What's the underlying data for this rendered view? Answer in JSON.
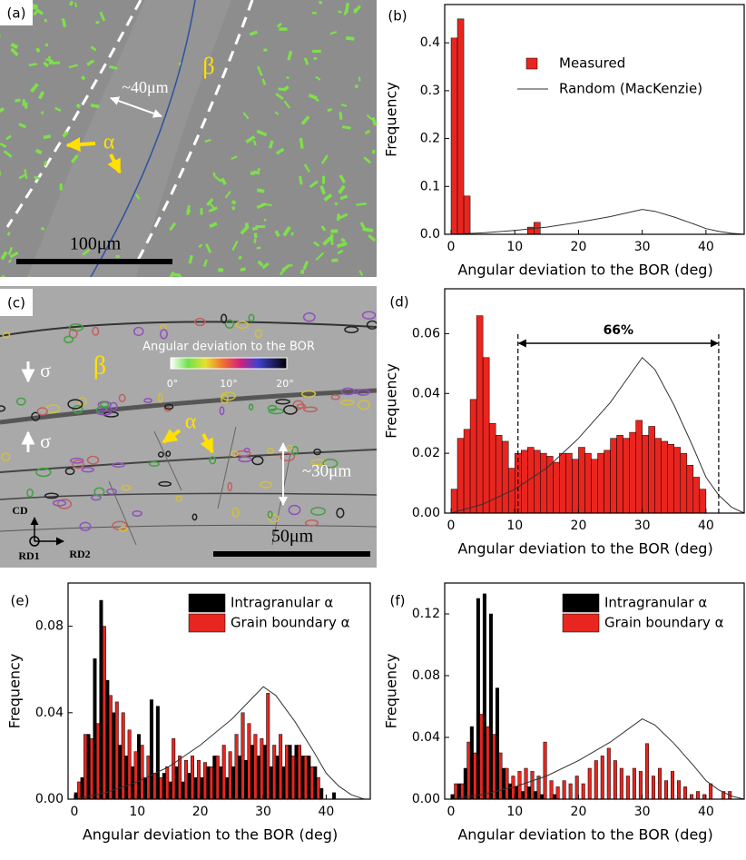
{
  "images": [
    {
      "label": "(a)",
      "width_text": "~40μm",
      "phase_beta": "β",
      "phase_alpha": "α",
      "scale_bar": "100μm"
    },
    {
      "label": "(c)",
      "colorbar_title": "Angular deviation to the BOR",
      "colorbar_ticks": [
        "0°",
        "10°",
        "20°"
      ],
      "stress_top": "σ",
      "stress_bottom": "σ",
      "phase_beta": "β",
      "phase_alpha": "α",
      "width_text": "~30μm",
      "scale_bar": "50μm",
      "axes": [
        "CD",
        "RD1",
        "RD2"
      ]
    }
  ],
  "chart_data": [
    {
      "type": "histogram",
      "label": "(b)",
      "x_label": "Angular deviation to the BOR (deg)",
      "y_label": "Frequency",
      "xlim": [
        -1,
        46
      ],
      "ylim": [
        0,
        0.48
      ],
      "xticks": [
        0,
        10,
        20,
        30,
        40
      ],
      "yticks": [
        {
          "value": 0,
          "label": "0.0"
        },
        0.1,
        0.2,
        0.3,
        0.4
      ],
      "legend": "upper right",
      "bins": [
        0,
        1,
        2,
        3,
        4,
        5,
        6,
        7,
        8,
        9,
        10,
        11,
        12,
        13,
        14
      ],
      "series": [
        {
          "name": "Measured",
          "type": "histogram",
          "color": "#e8251f",
          "values": [
            0.41,
            0.45,
            0.08,
            0,
            0,
            0,
            0,
            0,
            0,
            0,
            0,
            0,
            0.015,
            0.025
          ]
        },
        {
          "name": "Random (MacKenzie)",
          "type": "line",
          "color": "#333333",
          "x": [
            0,
            5,
            10,
            15,
            20,
            25,
            28,
            30,
            32,
            35,
            38,
            40,
            42,
            44,
            46
          ],
          "values": [
            0,
            0.003,
            0.008,
            0.015,
            0.025,
            0.037,
            0.046,
            0.052,
            0.048,
            0.036,
            0.022,
            0.012,
            0.006,
            0.002,
            0
          ]
        }
      ]
    },
    {
      "type": "histogram",
      "label": "(d)",
      "x_label": "Angular deviation to the BOR (deg)",
      "y_label": "Frequency",
      "xlim": [
        -1,
        46
      ],
      "ylim": [
        0,
        0.075
      ],
      "xticks": [
        0,
        10,
        20,
        30,
        40
      ],
      "yticks": [
        {
          "value": 0,
          "label": "0.00"
        },
        {
          "value": 0.02,
          "label": "0.02"
        },
        {
          "value": 0.04,
          "label": "0.04"
        },
        {
          "value": 0.06,
          "label": "0.06"
        }
      ],
      "annotation": {
        "text": "66%",
        "x_start": 10.5,
        "x_end": 42
      },
      "bins": [
        0,
        1,
        2,
        3,
        4,
        5,
        6,
        7,
        8,
        9,
        10,
        11,
        12,
        13,
        14,
        15,
        16,
        17,
        18,
        19,
        20,
        21,
        22,
        23,
        24,
        25,
        26,
        27,
        28,
        29,
        30,
        31,
        32,
        33,
        34,
        35,
        36,
        37,
        38,
        39,
        40
      ],
      "series": [
        {
          "type": "histogram",
          "color": "#e8251f",
          "values": [
            0.008,
            0.025,
            0.028,
            0.038,
            0.066,
            0.052,
            0.03,
            0.026,
            0.024,
            0.015,
            0.02,
            0.021,
            0.022,
            0.021,
            0.02,
            0.019,
            0.017,
            0.02,
            0.02,
            0.018,
            0.022,
            0.02,
            0.018,
            0.02,
            0.021,
            0.025,
            0.026,
            0.025,
            0.027,
            0.031,
            0.026,
            0.029,
            0.025,
            0.024,
            0.023,
            0.022,
            0.02,
            0.016,
            0.012,
            0.008
          ]
        },
        {
          "type": "line",
          "color": "#333333",
          "x": [
            0,
            5,
            10,
            15,
            20,
            25,
            28,
            30,
            32,
            35,
            38,
            40,
            42,
            44,
            46
          ],
          "values": [
            0,
            0.003,
            0.008,
            0.015,
            0.025,
            0.037,
            0.046,
            0.052,
            0.048,
            0.036,
            0.022,
            0.012,
            0.006,
            0.002,
            0
          ]
        }
      ]
    },
    {
      "type": "histogram",
      "label": "(e)",
      "x_label": "Angular deviation to the BOR (deg)",
      "y_label": "Frequency",
      "xlim": [
        -1,
        47
      ],
      "ylim": [
        0,
        0.1
      ],
      "xticks": [
        0,
        10,
        20,
        30,
        40
      ],
      "yticks": [
        {
          "value": 0,
          "label": "0.00"
        },
        {
          "value": 0.04,
          "label": "0.04"
        },
        {
          "value": 0.08,
          "label": "0.08"
        }
      ],
      "legend": "upper right",
      "bins": [
        0,
        1,
        2,
        3,
        4,
        5,
        6,
        7,
        8,
        9,
        10,
        11,
        12,
        13,
        14,
        15,
        16,
        17,
        18,
        19,
        20,
        21,
        22,
        23,
        24,
        25,
        26,
        27,
        28,
        29,
        30,
        31,
        32,
        33,
        34,
        35,
        36,
        37,
        38,
        39,
        40,
        41,
        42
      ],
      "series": [
        {
          "name": "Intragranular α",
          "type": "histogram",
          "color": "#000000",
          "values": [
            0.003,
            0.01,
            0.03,
            0.065,
            0.092,
            0.055,
            0.04,
            0.025,
            0.02,
            0.015,
            0.03,
            0.01,
            0.046,
            0.043,
            0.012,
            0.008,
            0.015,
            0.008,
            0.012,
            0.01,
            0.01,
            0.015,
            0.02,
            0.015,
            0.01,
            0.015,
            0.02,
            0.018,
            0.025,
            0.02,
            0.025,
            0.015,
            0.02,
            0.015,
            0.025,
            0.025,
            0.02,
            0.02,
            0.015,
            0.005,
            0,
            0.003
          ]
        },
        {
          "name": "Grain boundary α",
          "type": "histogram",
          "color": "#e8251f",
          "values": [
            0.008,
            0.03,
            0.028,
            0.035,
            0.08,
            0.048,
            0.045,
            0.04,
            0.032,
            0.022,
            0.025,
            0.02,
            0.012,
            0.01,
            0.015,
            0.028,
            0.02,
            0.018,
            0.02,
            0.018,
            0.017,
            0.015,
            0.02,
            0.025,
            0.022,
            0.03,
            0.04,
            0.035,
            0.03,
            0.028,
            0.049,
            0.025,
            0.03,
            0.025,
            0.02,
            0.025,
            0.02,
            0.015,
            0.01,
            0,
            0,
            0
          ]
        },
        {
          "type": "line",
          "color": "#333333",
          "x": [
            0,
            5,
            10,
            15,
            20,
            25,
            28,
            30,
            32,
            35,
            38,
            40,
            42,
            44,
            46
          ],
          "values": [
            0,
            0.003,
            0.008,
            0.015,
            0.025,
            0.037,
            0.046,
            0.052,
            0.048,
            0.036,
            0.022,
            0.012,
            0.006,
            0.002,
            0
          ]
        }
      ]
    },
    {
      "type": "histogram",
      "label": "(f)",
      "x_label": "Angular deviation to the BOR (deg)",
      "y_label": "Frequency",
      "xlim": [
        -1,
        46
      ],
      "ylim": [
        0,
        0.14
      ],
      "xticks": [
        0,
        10,
        20,
        30,
        40
      ],
      "yticks": [
        {
          "value": 0,
          "label": "0.00"
        },
        {
          "value": 0.04,
          "label": "0.04"
        },
        {
          "value": 0.08,
          "label": "0.08"
        },
        {
          "value": 0.12,
          "label": "0.12"
        }
      ],
      "legend": "upper right",
      "bins": [
        0,
        1,
        2,
        3,
        4,
        5,
        6,
        7,
        8,
        9,
        10,
        11,
        12,
        13,
        14,
        15,
        16,
        17,
        18,
        19,
        20,
        21,
        22,
        23,
        24,
        25,
        26,
        27,
        28,
        29,
        30,
        31,
        32,
        33,
        34,
        35,
        36,
        37,
        38,
        39,
        40,
        41,
        42,
        43,
        44,
        45
      ],
      "series": [
        {
          "name": "Intragranular α",
          "type": "histogram",
          "color": "#000000",
          "values": [
            0.003,
            0.01,
            0.02,
            0.047,
            0.13,
            0.133,
            0.12,
            0.072,
            0.02,
            0.01,
            0.008,
            0.005,
            0.008,
            0.005,
            0.003,
            0,
            0.003,
            0,
            0,
            0,
            0,
            0,
            0,
            0,
            0,
            0,
            0,
            0,
            0,
            0,
            0,
            0,
            0,
            0,
            0,
            0,
            0,
            0,
            0,
            0,
            0,
            0,
            0,
            0,
            0
          ]
        },
        {
          "name": "Grain boundary α",
          "type": "histogram",
          "color": "#e8251f",
          "values": [
            0.01,
            0.01,
            0.037,
            0.03,
            0.055,
            0.047,
            0.042,
            0.03,
            0.02,
            0.015,
            0.018,
            0.02,
            0.018,
            0.015,
            0.037,
            0.012,
            0.008,
            0.012,
            0.01,
            0.015,
            0.01,
            0.02,
            0.025,
            0.028,
            0.033,
            0.025,
            0.02,
            0.015,
            0.02,
            0.018,
            0.036,
            0.015,
            0.02,
            0.012,
            0.018,
            0.012,
            0.008,
            0.003,
            0.005,
            0.003,
            0.01,
            0,
            0.005,
            0.005,
            0
          ]
        },
        {
          "type": "line",
          "color": "#333333",
          "x": [
            0,
            5,
            10,
            15,
            20,
            25,
            28,
            30,
            32,
            35,
            38,
            40,
            42,
            44,
            46
          ],
          "values": [
            0,
            0.003,
            0.008,
            0.015,
            0.025,
            0.037,
            0.046,
            0.052,
            0.048,
            0.036,
            0.022,
            0.012,
            0.006,
            0.002,
            0
          ]
        }
      ]
    }
  ]
}
